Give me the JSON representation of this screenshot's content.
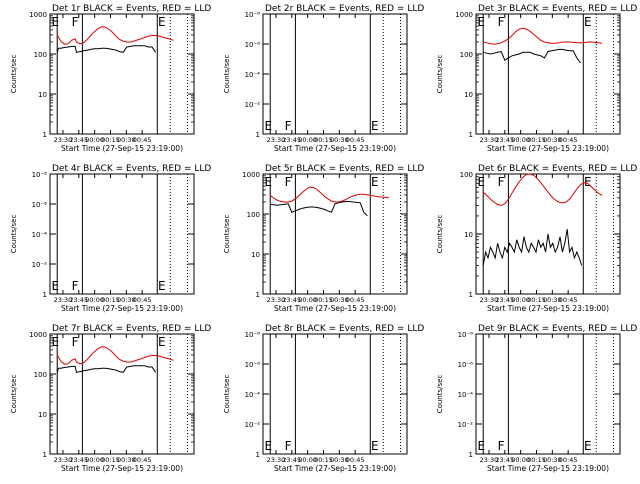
{
  "chart_data": [
    {
      "type": "line",
      "title": "Det 1r BLACK = Events, RED = LLD",
      "ylabel": "Counts/sec",
      "xlabel": "Start Time (27-Sep-15 23:19:00)",
      "scale": "log",
      "ylim": [
        1,
        1000
      ],
      "yticks": [
        "1",
        "10",
        "100",
        "1000"
      ],
      "xticks": [
        "23:30",
        "23:45",
        "00:00",
        "00:15",
        "00:30",
        "00:45"
      ],
      "markers": [
        "E",
        "F",
        "E"
      ],
      "series": [
        {
          "role": "lld",
          "color": "#e00000",
          "x": [
            0,
            3,
            6,
            9,
            12,
            15,
            16,
            19,
            22,
            25,
            28,
            31,
            34,
            37,
            40,
            43,
            46,
            49,
            52,
            55,
            58,
            61,
            64,
            67,
            70,
            73,
            76,
            79,
            82,
            85,
            88,
            91,
            94,
            97
          ],
          "y": [
            300,
            210,
            175,
            180,
            220,
            240,
            200,
            180,
            190,
            230,
            290,
            360,
            430,
            480,
            470,
            420,
            350,
            280,
            230,
            210,
            200,
            200,
            210,
            225,
            240,
            260,
            280,
            290,
            290,
            280,
            265,
            250,
            235,
            220
          ]
        },
        {
          "role": "events",
          "color": "#000000",
          "x": [
            0,
            1,
            3,
            6,
            9,
            12,
            15,
            16,
            19,
            22,
            25,
            28,
            31,
            34,
            37,
            40,
            43,
            46,
            49,
            52,
            55,
            58,
            61,
            64,
            67,
            70,
            73,
            76,
            79,
            82
          ],
          "y": [
            110,
            140,
            140,
            145,
            150,
            155,
            155,
            110,
            115,
            120,
            125,
            130,
            135,
            135,
            140,
            140,
            135,
            130,
            125,
            115,
            110,
            150,
            155,
            160,
            160,
            160,
            160,
            150,
            150,
            110
          ]
        }
      ]
    },
    {
      "type": "line",
      "title": "Det 2r BLACK = Events, RED = LLD",
      "ylabel": "Counts/sec",
      "xlabel": "Start Time (27-Sep-15 23:19:00)",
      "scale": "log",
      "ylim": [
        1,
        1e-08
      ],
      "yticks": [
        "1",
        "10⁻²",
        "10⁻⁴",
        "10⁻⁶",
        "10⁻⁸"
      ],
      "xticks": [
        "23:30",
        "23:45",
        "00:00",
        "00:15",
        "00:30",
        "00:45"
      ],
      "markers": [
        "E",
        "F",
        "E"
      ],
      "series": []
    },
    {
      "type": "line",
      "title": "Det 3r BLACK = Events, RED = LLD",
      "ylabel": "Counts/sec",
      "xlabel": "Start Time (27-Sep-15 23:19:00)",
      "scale": "log",
      "ylim": [
        1,
        1000
      ],
      "yticks": [
        "1",
        "10",
        "100",
        "1000"
      ],
      "xticks": [
        "23:30",
        "23:45",
        "00:00",
        "00:15",
        "00:30",
        "00:45"
      ],
      "markers": [
        "E",
        "F",
        "E"
      ],
      "series": [
        {
          "role": "lld",
          "color": "#e00000",
          "x": [
            0,
            3,
            6,
            9,
            12,
            15,
            18,
            21,
            24,
            27,
            30,
            33,
            36,
            39,
            42,
            45,
            48,
            51,
            54,
            57,
            60,
            63,
            66,
            69,
            72,
            75,
            78,
            81,
            84,
            87,
            90,
            93,
            96,
            99
          ],
          "y": [
            200,
            190,
            180,
            175,
            180,
            190,
            210,
            240,
            290,
            360,
            420,
            440,
            420,
            370,
            310,
            260,
            220,
            200,
            190,
            185,
            185,
            190,
            200,
            200,
            200,
            195,
            190,
            190,
            190,
            200,
            200,
            195,
            190,
            185
          ]
        },
        {
          "role": "events",
          "color": "#000000",
          "x": [
            0,
            3,
            6,
            9,
            12,
            15,
            18,
            21,
            24,
            27,
            30,
            33,
            36,
            39,
            42,
            45,
            48,
            51,
            54,
            57,
            60,
            63,
            66,
            69,
            72,
            75,
            78,
            81
          ],
          "y": [
            110,
            105,
            100,
            105,
            110,
            115,
            70,
            80,
            90,
            95,
            100,
            110,
            110,
            110,
            100,
            95,
            90,
            80,
            115,
            120,
            125,
            130,
            130,
            125,
            120,
            120,
            80,
            60
          ]
        }
      ]
    },
    {
      "type": "line",
      "title": "Det 4r BLACK = Events, RED = LLD",
      "ylabel": "Counts/sec",
      "xlabel": "Start Time (27-Sep-15 23:19:00)",
      "scale": "log",
      "ylim": [
        1,
        1e-08
      ],
      "yticks": [
        "1",
        "10⁻²",
        "10⁻⁴",
        "10⁻⁶",
        "10⁻⁸"
      ],
      "xticks": [
        "23:30",
        "23:45",
        "00:00",
        "00:15",
        "00:30",
        "00:45"
      ],
      "markers": [
        "E",
        "F",
        "E"
      ],
      "series": []
    },
    {
      "type": "line",
      "title": "Det 5r BLACK = Events, RED = LLD",
      "ylabel": "Counts/sec",
      "xlabel": "Start Time (27-Sep-15 23:19:00)",
      "scale": "log",
      "ylim": [
        1,
        1000
      ],
      "yticks": [
        "1",
        "10",
        "100",
        "1000"
      ],
      "xticks": [
        "23:30",
        "23:45",
        "00:00",
        "00:15",
        "00:30",
        "00:45"
      ],
      "markers": [
        "E",
        "F",
        "E"
      ],
      "series": [
        {
          "role": "lld",
          "color": "#e00000",
          "x": [
            0,
            3,
            6,
            9,
            12,
            15,
            18,
            21,
            24,
            27,
            30,
            33,
            36,
            39,
            42,
            45,
            48,
            51,
            54,
            57,
            60,
            63,
            66,
            69,
            72,
            75,
            78,
            81,
            84,
            87,
            90,
            93,
            96,
            99
          ],
          "y": [
            290,
            250,
            220,
            205,
            200,
            200,
            210,
            240,
            290,
            350,
            420,
            470,
            460,
            410,
            340,
            280,
            240,
            210,
            200,
            200,
            210,
            230,
            260,
            280,
            300,
            310,
            310,
            300,
            290,
            280,
            270,
            265,
            260,
            255
          ]
        },
        {
          "role": "events",
          "color": "#000000",
          "x": [
            0,
            3,
            6,
            9,
            12,
            15,
            18,
            21,
            24,
            27,
            30,
            33,
            36,
            39,
            42,
            45,
            48,
            51,
            54,
            57,
            60,
            63,
            66,
            69,
            72,
            75,
            78,
            81
          ],
          "y": [
            175,
            170,
            165,
            170,
            175,
            180,
            110,
            120,
            130,
            140,
            145,
            150,
            150,
            145,
            140,
            130,
            120,
            110,
            180,
            190,
            200,
            205,
            205,
            200,
            195,
            190,
            110,
            90
          ]
        }
      ]
    },
    {
      "type": "line",
      "title": "Det 6r BLACK = Events, RED = LLD",
      "ylabel": "Counts/sec",
      "xlabel": "Start Time (27-Sep-15 23:19:00)",
      "scale": "log",
      "ylim": [
        1,
        100
      ],
      "yticks": [
        "1",
        "10",
        "100"
      ],
      "xticks": [
        "23:30",
        "23:45",
        "00:00",
        "00:15",
        "00:30",
        "00:45"
      ],
      "markers": [
        "E",
        "F",
        "E"
      ],
      "series": [
        {
          "role": "lld",
          "color": "#e00000",
          "x": [
            0,
            3,
            6,
            9,
            12,
            15,
            18,
            21,
            24,
            27,
            30,
            33,
            36,
            39,
            42,
            45,
            48,
            51,
            54,
            57,
            60,
            63,
            66,
            69,
            72,
            75,
            78,
            81,
            84,
            87,
            90,
            93,
            96,
            99
          ],
          "y": [
            50,
            44,
            38,
            34,
            31,
            30,
            32,
            38,
            48,
            60,
            74,
            88,
            98,
            100,
            95,
            84,
            72,
            60,
            50,
            42,
            37,
            34,
            33,
            34,
            38,
            46,
            56,
            66,
            72,
            70,
            62,
            54,
            48,
            44
          ]
        },
        {
          "role": "events",
          "color": "#000000",
          "x": [
            0,
            2,
            4,
            6,
            8,
            10,
            12,
            14,
            16,
            18,
            20,
            22,
            24,
            26,
            28,
            30,
            32,
            34,
            36,
            38,
            40,
            42,
            44,
            46,
            48,
            50,
            52,
            54,
            56,
            58,
            60,
            62,
            64,
            66,
            68,
            70,
            72,
            74,
            76,
            78,
            80,
            82
          ],
          "y": [
            3,
            5,
            4,
            6,
            5,
            4,
            7,
            5,
            4,
            6,
            5,
            7,
            6,
            5,
            8,
            6,
            5,
            9,
            6,
            5,
            7,
            6,
            5,
            8,
            6,
            7,
            5,
            10,
            6,
            7,
            5,
            6,
            9,
            5,
            7,
            12,
            5,
            6,
            4,
            5,
            4,
            3
          ]
        }
      ]
    },
    {
      "type": "line",
      "title": "Det 7r BLACK = Events, RED = LLD",
      "ylabel": "Counts/sec",
      "xlabel": "Start Time (27-Sep-15 23:19:00)",
      "scale": "log",
      "ylim": [
        1,
        1000
      ],
      "yticks": [
        "1",
        "10",
        "100",
        "1000"
      ],
      "xticks": [
        "23:30",
        "23:45",
        "00:00",
        "00:15",
        "00:30",
        "00:45"
      ],
      "markers": [
        "E",
        "F",
        "E"
      ],
      "series": [
        {
          "role": "lld",
          "color": "#e00000",
          "x": [
            0,
            3,
            6,
            9,
            12,
            15,
            16,
            19,
            22,
            25,
            28,
            31,
            34,
            37,
            40,
            43,
            46,
            49,
            52,
            55,
            58,
            61,
            64,
            67,
            70,
            73,
            76,
            79,
            82,
            85,
            88,
            91,
            94,
            97
          ],
          "y": [
            300,
            210,
            175,
            180,
            220,
            240,
            200,
            180,
            190,
            230,
            290,
            360,
            430,
            480,
            470,
            420,
            350,
            280,
            230,
            210,
            200,
            200,
            210,
            225,
            240,
            260,
            280,
            290,
            290,
            280,
            265,
            250,
            235,
            220
          ]
        },
        {
          "role": "events",
          "color": "#000000",
          "x": [
            0,
            1,
            3,
            6,
            9,
            12,
            15,
            16,
            19,
            22,
            25,
            28,
            31,
            34,
            37,
            40,
            43,
            46,
            49,
            52,
            55,
            58,
            61,
            64,
            67,
            70,
            73,
            76,
            79,
            82
          ],
          "y": [
            110,
            140,
            140,
            145,
            150,
            155,
            155,
            110,
            115,
            120,
            125,
            130,
            135,
            135,
            140,
            140,
            135,
            130,
            125,
            115,
            110,
            150,
            155,
            160,
            160,
            160,
            160,
            150,
            150,
            110
          ]
        }
      ]
    },
    {
      "type": "line",
      "title": "Det 8r BLACK = Events, RED = LLD",
      "ylabel": "Counts/sec",
      "xlabel": "Start Time (27-Sep-15 23:19:00)",
      "scale": "log",
      "ylim": [
        1,
        1e-08
      ],
      "yticks": [
        "1",
        "10⁻²",
        "10⁻⁴",
        "10⁻⁶",
        "10⁻⁸"
      ],
      "xticks": [
        "23:30",
        "23:45",
        "00:00",
        "00:15",
        "00:30",
        "00:45"
      ],
      "markers": [
        "E",
        "F",
        "E"
      ],
      "series": []
    },
    {
      "type": "line",
      "title": "Det 9r BLACK = Events, RED = LLD",
      "ylabel": "Counts/sec",
      "xlabel": "Start Time (27-Sep-15 23:19:00)",
      "scale": "log",
      "ylim": [
        1,
        1e-08
      ],
      "yticks": [
        "1",
        "10⁻²",
        "10⁻⁴",
        "10⁻⁶",
        "10⁻⁸"
      ],
      "xticks": [
        "23:30",
        "23:45",
        "00:00",
        "00:15",
        "00:30",
        "00:45"
      ],
      "markers": [
        "E",
        "F",
        "E"
      ],
      "series": []
    }
  ]
}
